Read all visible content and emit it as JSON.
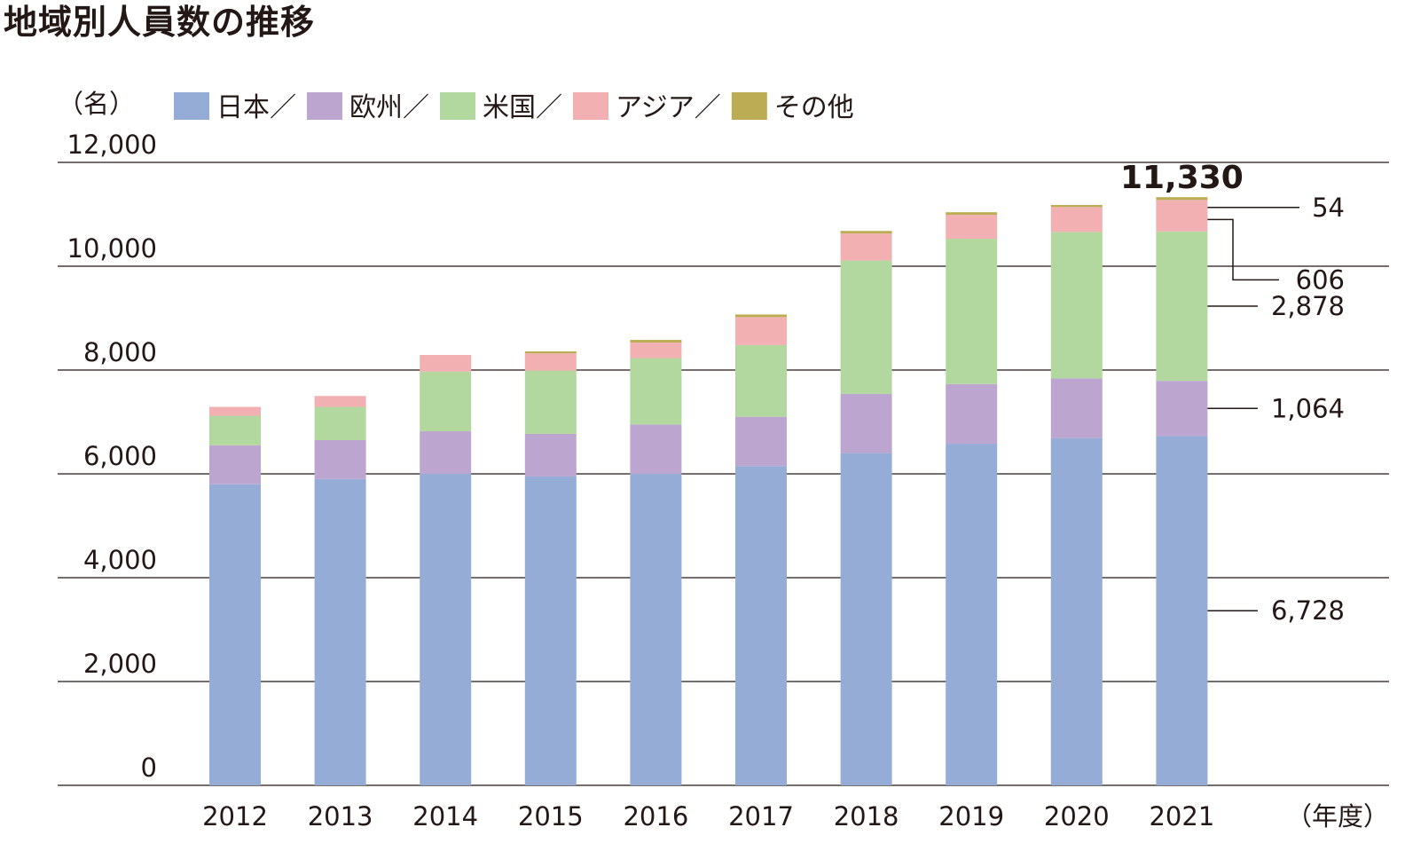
{
  "chart_data": {
    "type": "bar",
    "stacked": true,
    "title": "地域別人員数の推移",
    "ylabel": "（名）",
    "xlabel": "（年度）",
    "ylim": [
      0,
      12000
    ],
    "yticks": [
      0,
      2000,
      4000,
      6000,
      8000,
      10000,
      12000
    ],
    "ytick_labels": [
      "0",
      "2,000",
      "4,000",
      "6,000",
      "8,000",
      "10,000",
      "12,000"
    ],
    "grid": true,
    "legend_position": "top",
    "legend_separator": "／",
    "categories": [
      "2012",
      "2013",
      "2014",
      "2015",
      "2016",
      "2017",
      "2018",
      "2019",
      "2020",
      "2021"
    ],
    "series": [
      {
        "name": "日本",
        "color": "#95acd7",
        "values": [
          5800,
          5900,
          6000,
          5950,
          6000,
          6150,
          6400,
          6580,
          6690,
          6728
        ]
      },
      {
        "name": "欧州",
        "color": "#bca6cf",
        "values": [
          750,
          750,
          820,
          820,
          950,
          950,
          1140,
          1150,
          1150,
          1064
        ]
      },
      {
        "name": "米国",
        "color": "#b2d79f",
        "values": [
          570,
          640,
          1150,
          1220,
          1280,
          1380,
          2570,
          2800,
          2820,
          2878
        ]
      },
      {
        "name": "アジア",
        "color": "#f3b0b2",
        "values": [
          170,
          210,
          320,
          330,
          300,
          540,
          520,
          460,
          480,
          606
        ]
      },
      {
        "name": "その他",
        "color": "#bcad55",
        "values": [
          0,
          0,
          0,
          40,
          50,
          50,
          50,
          50,
          40,
          54
        ]
      }
    ],
    "annotations": {
      "total_label": "11,330",
      "callouts": [
        {
          "series": "その他",
          "label": "54"
        },
        {
          "series": "アジア",
          "label": "606"
        },
        {
          "series": "米国",
          "label": "2,878"
        },
        {
          "series": "欧州",
          "label": "1,064"
        },
        {
          "series": "日本",
          "label": "6,728"
        }
      ]
    }
  }
}
